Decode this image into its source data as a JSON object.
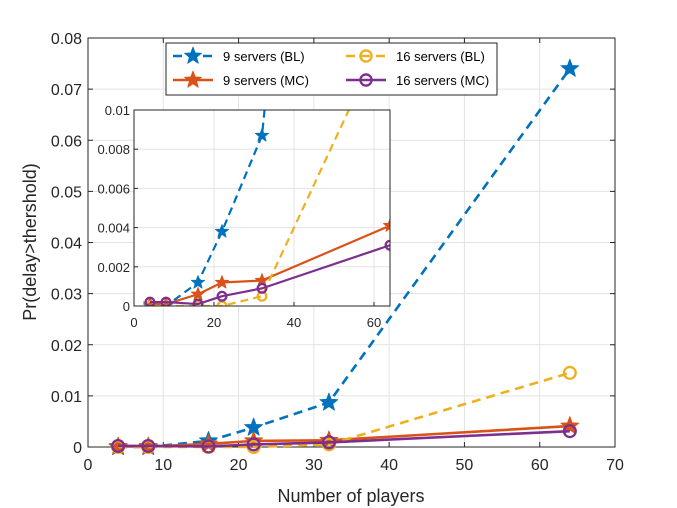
{
  "chart_data": {
    "type": "line",
    "xlabel": "Number of players",
    "ylabel": "Pr(delay>thershold)",
    "xlim": [
      0,
      70
    ],
    "ylim": [
      0,
      0.08
    ],
    "xticks": [
      "0",
      "10",
      "20",
      "30",
      "40",
      "50",
      "60",
      "70"
    ],
    "yticks": [
      "0",
      "0.01",
      "0.02",
      "0.03",
      "0.04",
      "0.05",
      "0.06",
      "0.07",
      "0.08"
    ],
    "grid": true,
    "legend_position": "top",
    "x": [
      4,
      8,
      16,
      22,
      32,
      64
    ],
    "series": [
      {
        "name": "9 servers (BL)",
        "color": "#0072BD",
        "style": "dashed",
        "marker": "star",
        "values": [
          0.0,
          0.0,
          0.0012,
          0.0038,
          0.0087,
          0.074
        ]
      },
      {
        "name": "9 servers (MC)",
        "color": "#D95319",
        "style": "solid",
        "marker": "star",
        "values": [
          0.0001,
          0.0001,
          0.0006,
          0.0012,
          0.0013,
          0.0041
        ]
      },
      {
        "name": "16 servers (BL)",
        "color": "#EDB120",
        "style": "dashed",
        "marker": "circle",
        "values": [
          0.0,
          0.0,
          0.0,
          0.0,
          0.0005,
          0.0145
        ]
      },
      {
        "name": "16 servers (MC)",
        "color": "#7E2F8E",
        "style": "solid",
        "marker": "circle",
        "values": [
          0.0002,
          0.0002,
          0.0001,
          0.0005,
          0.0009,
          0.0031
        ]
      }
    ],
    "inset": {
      "xlim": [
        0,
        64
      ],
      "ylim": [
        0,
        0.01
      ],
      "xticks": [
        "0",
        "20",
        "40",
        "60"
      ],
      "yticks": [
        "0",
        "0.002",
        "0.004",
        "0.006",
        "0.008",
        "0.01"
      ]
    }
  }
}
